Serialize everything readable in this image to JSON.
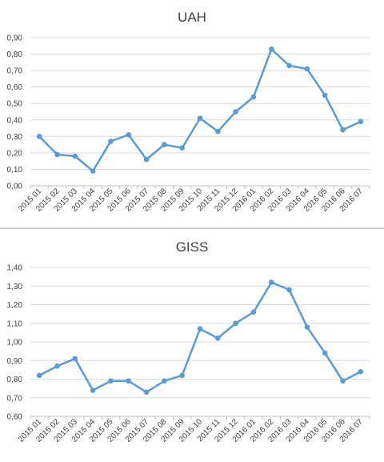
{
  "chart_data": [
    {
      "type": "line",
      "title": "UAH",
      "categories": [
        "2015 01",
        "2015 02",
        "2015 03",
        "2015 04",
        "2015 05",
        "2015 06",
        "2015 07",
        "2015 08",
        "2015 09",
        "2015 10",
        "2015 11",
        "2015 12",
        "2016 01",
        "2016 02",
        "2016 03",
        "2016 04",
        "2016 05",
        "2016 06",
        "2016 07"
      ],
      "series": [
        {
          "values": [
            0.3,
            0.19,
            0.18,
            0.09,
            0.27,
            0.31,
            0.16,
            0.25,
            0.23,
            0.41,
            0.33,
            0.45,
            0.54,
            0.83,
            0.73,
            0.71,
            0.55,
            0.34,
            0.39
          ]
        }
      ],
      "yticks": [
        "0,00",
        "0,10",
        "0,20",
        "0,30",
        "0,40",
        "0,50",
        "0,60",
        "0,70",
        "0,80",
        "0,90"
      ],
      "ylim": [
        0,
        0.9
      ],
      "grid": true,
      "line_color": "#5b9bd5"
    },
    {
      "type": "line",
      "title": "GISS",
      "categories": [
        "2015 01",
        "2015 02",
        "2015 03",
        "2015 04",
        "2015 05",
        "2015 06",
        "2015 07",
        "2015 08",
        "2015 09",
        "2015 10",
        "2015 11",
        "2015 12",
        "2016 01",
        "2016 02",
        "2016 03",
        "2016 04",
        "2016 05",
        "2016 06",
        "2016 07"
      ],
      "series": [
        {
          "values": [
            0.82,
            0.87,
            0.91,
            0.74,
            0.79,
            0.79,
            0.73,
            0.79,
            0.82,
            1.07,
            1.02,
            1.1,
            1.16,
            1.32,
            1.28,
            1.08,
            0.94,
            0.79,
            0.84
          ]
        }
      ],
      "yticks": [
        "0,60",
        "0,70",
        "0,80",
        "0,90",
        "1,00",
        "1,10",
        "1,20",
        "1,30",
        "1,40"
      ],
      "ylim": [
        0.6,
        1.4
      ],
      "grid": true,
      "line_color": "#5b9bd5"
    }
  ]
}
